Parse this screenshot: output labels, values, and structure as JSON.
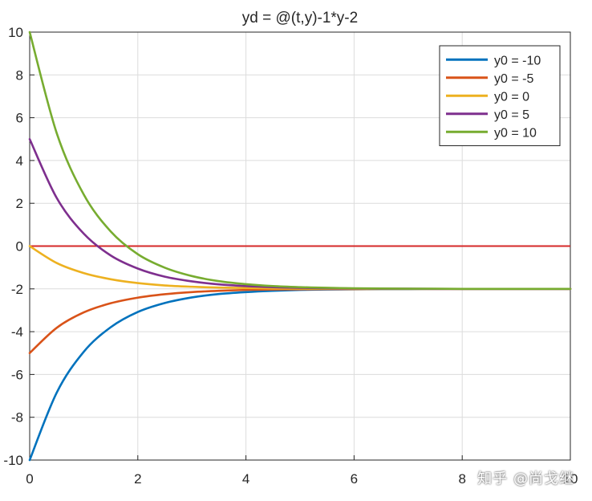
{
  "chart_data": {
    "type": "line",
    "title": "yd = @(t,y)-1*y-2",
    "xlabel": "",
    "ylabel": "",
    "xlim": [
      0,
      10
    ],
    "ylim": [
      -10,
      10
    ],
    "xticks": [
      0,
      2,
      4,
      6,
      8,
      10
    ],
    "yticks": [
      -10,
      -8,
      -6,
      -4,
      -2,
      0,
      2,
      4,
      6,
      8,
      10
    ],
    "grid": true,
    "legend_position": "top-right",
    "reference_line": {
      "y": 0,
      "color": "#D62828"
    },
    "x": [
      0,
      0.5,
      1,
      1.5,
      2,
      2.5,
      3,
      3.5,
      4,
      4.5,
      5,
      5.5,
      6,
      6.5,
      7,
      7.5,
      8,
      8.5,
      9,
      9.5,
      10
    ],
    "series": [
      {
        "name": "y0 = -10",
        "color": "#0072BD",
        "values": [
          -10,
          -6.85,
          -4.94,
          -3.79,
          -3.08,
          -2.66,
          -2.4,
          -2.24,
          -2.15,
          -2.09,
          -2.05,
          -2.03,
          -2.02,
          -2.01,
          -2.01,
          -2.0,
          -2.0,
          -2.0,
          -2.0,
          -2.0,
          -2.0
        ]
      },
      {
        "name": "y0 = -5",
        "color": "#D95319",
        "values": [
          -5,
          -3.82,
          -3.1,
          -2.67,
          -2.41,
          -2.25,
          -2.15,
          -2.09,
          -2.05,
          -2.03,
          -2.02,
          -2.01,
          -2.01,
          -2.0,
          -2.0,
          -2.0,
          -2.0,
          -2.0,
          -2.0,
          -2.0,
          -2.0
        ]
      },
      {
        "name": "y0 = 0",
        "color": "#EDB120",
        "values": [
          0,
          -0.79,
          -1.26,
          -1.55,
          -1.73,
          -1.84,
          -1.9,
          -1.94,
          -1.96,
          -1.98,
          -1.99,
          -1.99,
          -2.0,
          -2.0,
          -2.0,
          -2.0,
          -2.0,
          -2.0,
          -2.0,
          -2.0,
          -2.0
        ]
      },
      {
        "name": "y0 = 5",
        "color": "#7E2F8E",
        "values": [
          5,
          2.25,
          0.58,
          -0.44,
          -1.05,
          -1.43,
          -1.65,
          -1.79,
          -1.87,
          -1.92,
          -1.95,
          -1.97,
          -1.98,
          -1.99,
          -1.99,
          -2.0,
          -2.0,
          -2.0,
          -2.0,
          -2.0,
          -2.0
        ]
      },
      {
        "name": "y0 = 10",
        "color": "#77AC30",
        "values": [
          10,
          5.28,
          2.41,
          0.68,
          -0.38,
          -1.01,
          -1.4,
          -1.64,
          -1.78,
          -1.87,
          -1.92,
          -1.95,
          -1.97,
          -1.98,
          -1.99,
          -1.99,
          -2.0,
          -2.0,
          -2.0,
          -2.0,
          -2.0
        ]
      }
    ]
  },
  "watermark": "知乎 @尚戈继"
}
